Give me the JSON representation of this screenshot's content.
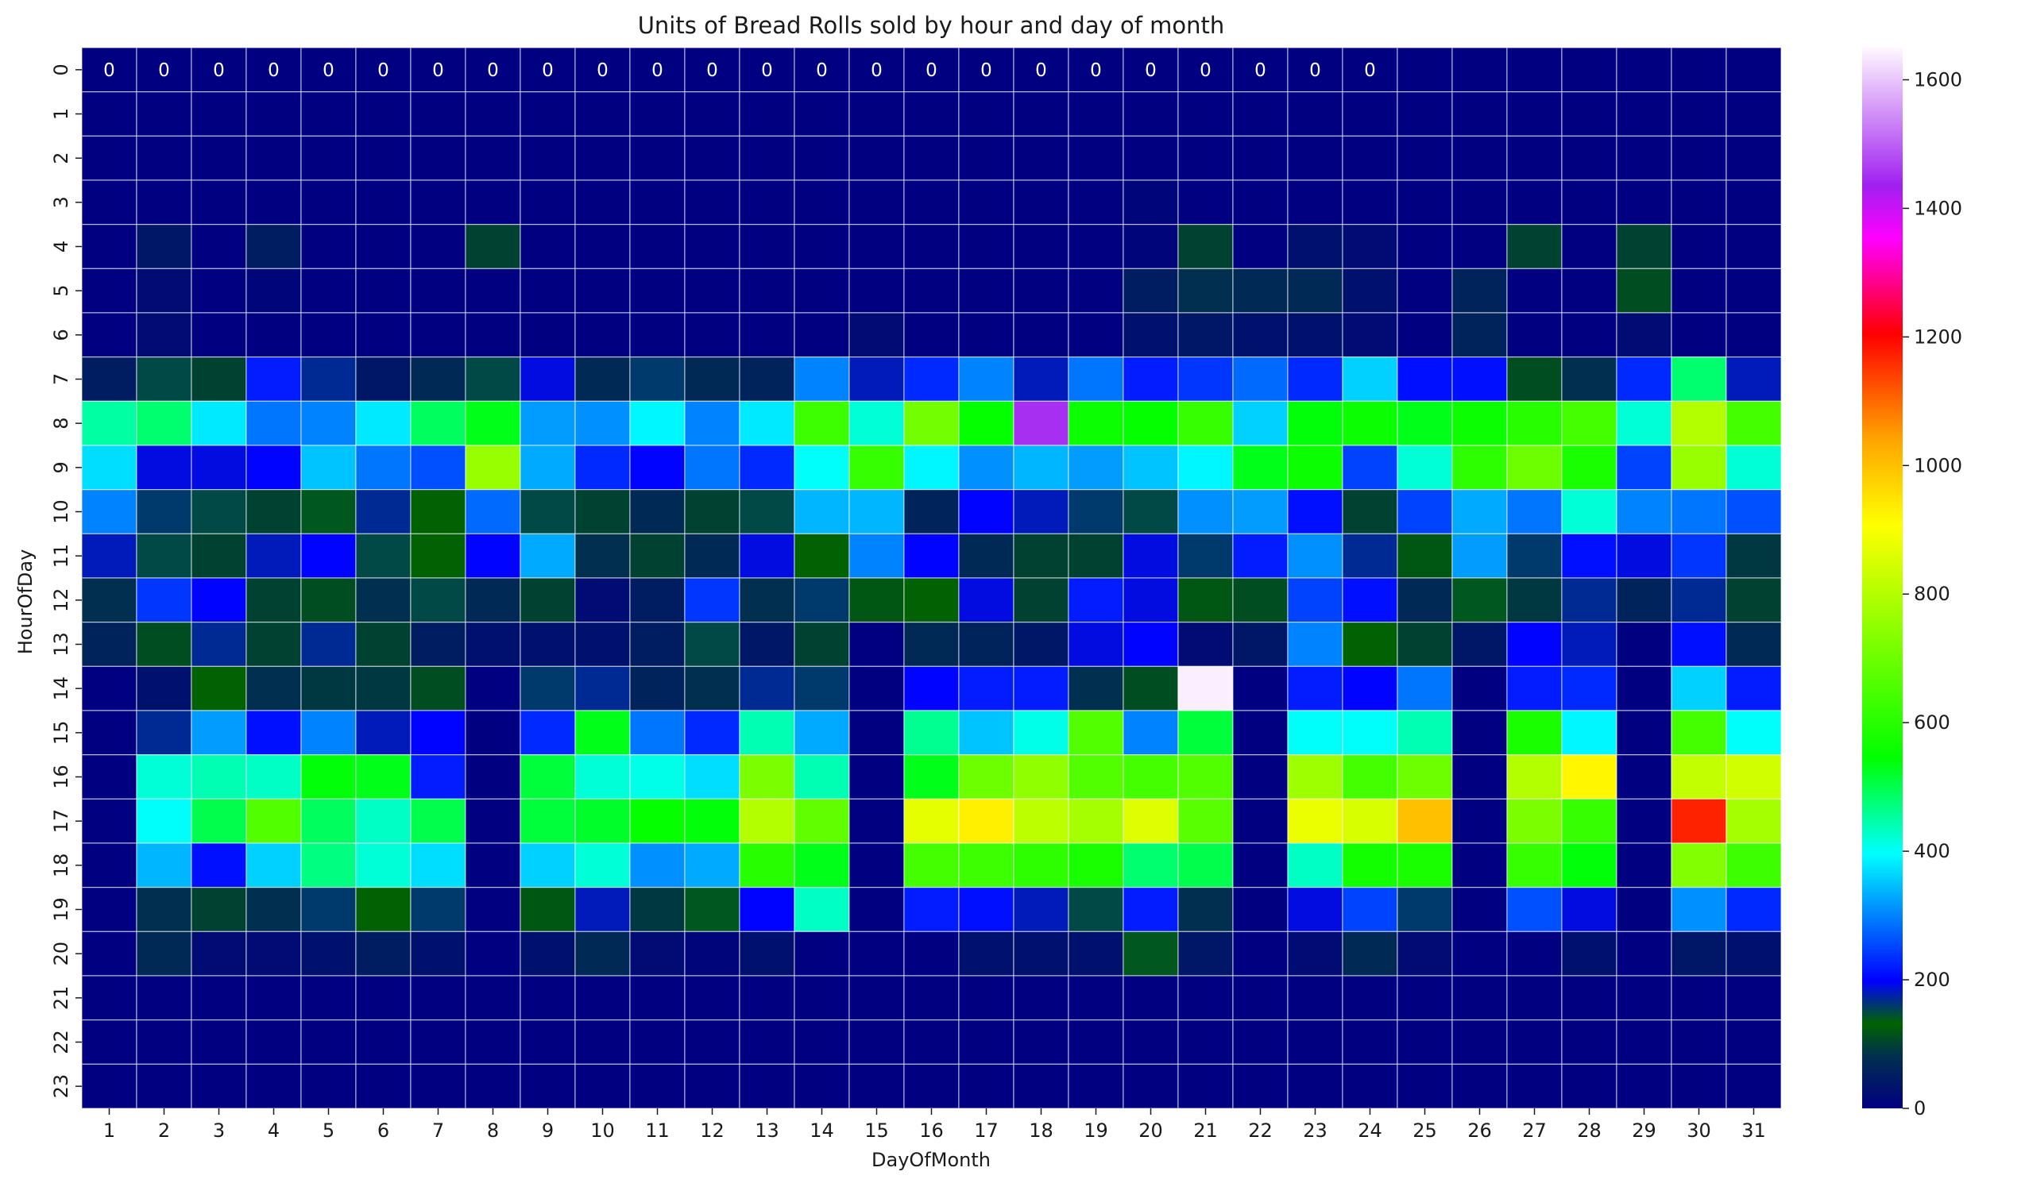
{
  "chart_data": {
    "type": "heatmap",
    "title": "Units of Bread Rolls sold by hour and day of month",
    "xlabel": "DayOfMonth",
    "ylabel": "HourOfDay",
    "x": [
      "1",
      "2",
      "3",
      "4",
      "5",
      "6",
      "7",
      "8",
      "9",
      "10",
      "11",
      "12",
      "13",
      "14",
      "15",
      "16",
      "17",
      "18",
      "19",
      "20",
      "21",
      "22",
      "23",
      "24",
      "25",
      "26",
      "27",
      "28",
      "29",
      "30",
      "31"
    ],
    "y": [
      "0",
      "1",
      "2",
      "3",
      "4",
      "5",
      "6",
      "7",
      "8",
      "9",
      "10",
      "11",
      "12",
      "13",
      "14",
      "15",
      "16",
      "17",
      "18",
      "19",
      "20",
      "21",
      "22",
      "23"
    ],
    "colorbar": {
      "min": 0,
      "max": 1650,
      "ticks": [
        0,
        200,
        400,
        600,
        800,
        1000,
        1200,
        1400,
        1600
      ]
    },
    "grid": true,
    "annotated_row": 0,
    "annotated_cols": 24,
    "values": [
      [
        0,
        0,
        0,
        0,
        0,
        0,
        0,
        0,
        0,
        0,
        0,
        0,
        0,
        0,
        0,
        0,
        0,
        0,
        0,
        0,
        0,
        0,
        0,
        0,
        0,
        0,
        0,
        0,
        0,
        0,
        0
      ],
      [
        0,
        0,
        0,
        0,
        0,
        0,
        0,
        0,
        0,
        0,
        0,
        0,
        0,
        0,
        0,
        0,
        0,
        0,
        0,
        0,
        0,
        0,
        0,
        0,
        0,
        0,
        0,
        0,
        0,
        0,
        0
      ],
      [
        0,
        0,
        0,
        0,
        0,
        0,
        0,
        0,
        0,
        0,
        0,
        0,
        0,
        0,
        0,
        0,
        0,
        0,
        0,
        0,
        0,
        0,
        0,
        0,
        0,
        0,
        0,
        0,
        0,
        0,
        0
      ],
      [
        0,
        0,
        0,
        0,
        0,
        0,
        0,
        0,
        0,
        0,
        0,
        0,
        0,
        0,
        0,
        0,
        0,
        0,
        0,
        10,
        0,
        0,
        0,
        0,
        0,
        0,
        0,
        0,
        0,
        0,
        0
      ],
      [
        0,
        40,
        0,
        50,
        0,
        0,
        0,
        100,
        0,
        0,
        0,
        0,
        0,
        0,
        0,
        0,
        0,
        0,
        0,
        10,
        100,
        0,
        30,
        20,
        0,
        0,
        100,
        0,
        100,
        0,
        0
      ],
      [
        0,
        20,
        0,
        10,
        0,
        0,
        0,
        0,
        0,
        0,
        0,
        0,
        0,
        0,
        0,
        0,
        0,
        0,
        0,
        50,
        80,
        70,
        70,
        30,
        0,
        60,
        0,
        0,
        110,
        0,
        0
      ],
      [
        0,
        20,
        0,
        0,
        0,
        0,
        0,
        0,
        0,
        0,
        0,
        0,
        0,
        0,
        20,
        0,
        0,
        0,
        0,
        30,
        40,
        30,
        30,
        20,
        0,
        60,
        0,
        0,
        20,
        0,
        0
      ],
      [
        50,
        150,
        100,
        220,
        170,
        40,
        70,
        150,
        190,
        70,
        160,
        70,
        60,
        300,
        180,
        230,
        300,
        180,
        290,
        220,
        240,
        280,
        230,
        360,
        210,
        210,
        110,
        80,
        230,
        480,
        180
      ],
      [
        450,
        480,
        380,
        290,
        300,
        380,
        490,
        530,
        320,
        310,
        390,
        300,
        380,
        630,
        420,
        710,
        550,
        1450,
        560,
        550,
        620,
        360,
        540,
        560,
        530,
        560,
        600,
        640,
        420,
        800,
        640
      ],
      [
        370,
        190,
        190,
        200,
        350,
        290,
        260,
        760,
        330,
        230,
        200,
        290,
        230,
        400,
        620,
        390,
        310,
        340,
        320,
        350,
        390,
        530,
        560,
        250,
        420,
        610,
        700,
        580,
        250,
        760,
        420
      ],
      [
        300,
        160,
        150,
        100,
        140,
        170,
        130,
        280,
        150,
        100,
        70,
        100,
        150,
        340,
        340,
        60,
        200,
        180,
        160,
        150,
        310,
        320,
        210,
        100,
        250,
        330,
        290,
        420,
        300,
        290,
        260
      ],
      [
        180,
        150,
        100,
        180,
        200,
        150,
        130,
        200,
        330,
        80,
        100,
        70,
        190,
        130,
        300,
        200,
        70,
        100,
        100,
        190,
        160,
        220,
        310,
        170,
        120,
        320,
        160,
        210,
        190,
        240,
        90
      ],
      [
        80,
        240,
        200,
        100,
        110,
        80,
        150,
        70,
        100,
        20,
        50,
        240,
        80,
        160,
        120,
        130,
        190,
        100,
        220,
        190,
        120,
        110,
        250,
        210,
        70,
        140,
        90,
        170,
        60,
        170,
        100
      ],
      [
        60,
        110,
        170,
        100,
        170,
        100,
        50,
        30,
        30,
        30,
        50,
        150,
        40,
        100,
        0,
        70,
        60,
        40,
        190,
        200,
        20,
        40,
        300,
        130,
        100,
        40,
        200,
        180,
        0,
        210,
        70
      ],
      [
        0,
        30,
        130,
        80,
        90,
        90,
        110,
        0,
        160,
        170,
        60,
        80,
        170,
        160,
        0,
        200,
        220,
        220,
        80,
        110,
        1640,
        0,
        220,
        200,
        290,
        0,
        220,
        230,
        0,
        360,
        220
      ],
      [
        0,
        170,
        320,
        210,
        300,
        180,
        200,
        0,
        230,
        530,
        290,
        230,
        440,
        330,
        0,
        460,
        350,
        410,
        660,
        300,
        510,
        0,
        400,
        400,
        440,
        0,
        580,
        390,
        0,
        640,
        400
      ],
      [
        0,
        420,
        440,
        430,
        540,
        530,
        220,
        0,
        510,
        420,
        410,
        370,
        720,
        440,
        0,
        530,
        700,
        750,
        660,
        640,
        660,
        0,
        770,
        640,
        700,
        0,
        800,
        920,
        0,
        820,
        840
      ],
      [
        0,
        400,
        500,
        660,
        490,
        430,
        500,
        0,
        510,
        520,
        550,
        540,
        800,
        680,
        0,
        870,
        930,
        810,
        780,
        860,
        670,
        0,
        880,
        850,
        1000,
        0,
        720,
        620,
        0,
        1170,
        780
      ],
      [
        0,
        340,
        210,
        360,
        470,
        420,
        370,
        0,
        360,
        420,
        310,
        330,
        600,
        530,
        0,
        640,
        630,
        610,
        580,
        480,
        500,
        0,
        430,
        570,
        580,
        0,
        620,
        540,
        0,
        730,
        630
      ],
      [
        0,
        80,
        100,
        80,
        160,
        130,
        160,
        0,
        120,
        180,
        90,
        140,
        200,
        430,
        0,
        220,
        210,
        180,
        150,
        220,
        80,
        0,
        190,
        250,
        160,
        0,
        260,
        190,
        0,
        310,
        230
      ],
      [
        0,
        70,
        20,
        20,
        30,
        50,
        30,
        0,
        30,
        70,
        20,
        10,
        30,
        0,
        0,
        0,
        30,
        30,
        30,
        140,
        40,
        0,
        20,
        70,
        20,
        0,
        0,
        30,
        0,
        40,
        30
      ],
      [
        0,
        0,
        0,
        0,
        0,
        0,
        0,
        0,
        0,
        0,
        0,
        0,
        0,
        0,
        0,
        0,
        0,
        0,
        0,
        0,
        0,
        0,
        0,
        0,
        0,
        0,
        0,
        0,
        0,
        0,
        0
      ],
      [
        0,
        0,
        0,
        0,
        0,
        0,
        0,
        0,
        0,
        0,
        0,
        0,
        0,
        0,
        0,
        0,
        0,
        0,
        0,
        0,
        0,
        0,
        0,
        0,
        0,
        0,
        0,
        0,
        0,
        0,
        0
      ],
      [
        0,
        0,
        0,
        0,
        0,
        0,
        0,
        0,
        0,
        0,
        0,
        0,
        0,
        0,
        0,
        0,
        0,
        0,
        0,
        0,
        0,
        0,
        0,
        0,
        0,
        0,
        0,
        0,
        0,
        0,
        0
      ]
    ]
  }
}
